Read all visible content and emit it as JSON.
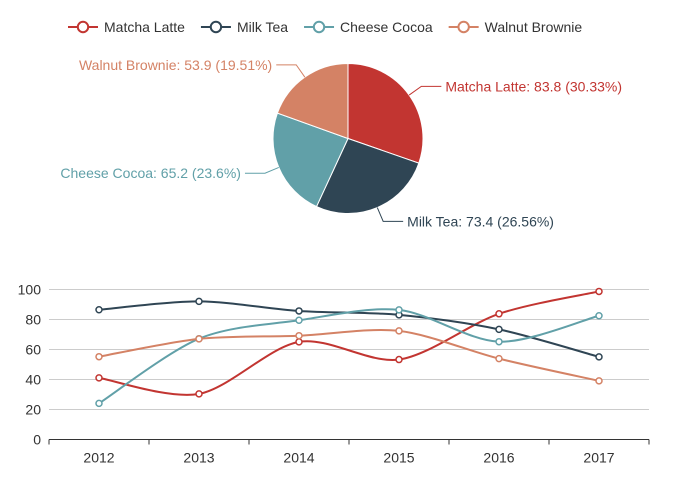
{
  "chart_data": [
    {
      "type": "pie",
      "slices": [
        {
          "name": "Matcha Latte",
          "value": 83.8,
          "percent_label": "30.33%",
          "color": "#c23531"
        },
        {
          "name": "Milk Tea",
          "value": 73.4,
          "percent_label": "26.56%",
          "color": "#2f4554"
        },
        {
          "name": "Cheese Cocoa",
          "value": 65.2,
          "percent_label": "23.6%",
          "color": "#61a0a8"
        },
        {
          "name": "Walnut Brownie",
          "value": 53.9,
          "percent_label": "19.51%",
          "color": "#d48265"
        }
      ],
      "legend": {
        "placement": "top-center",
        "items": [
          "Matcha Latte",
          "Milk Tea",
          "Cheese Cocoa",
          "Walnut Brownie"
        ]
      }
    },
    {
      "type": "line",
      "smooth": true,
      "categories": [
        "2012",
        "2013",
        "2014",
        "2015",
        "2016",
        "2017"
      ],
      "y_ticks": [
        0,
        20,
        40,
        60,
        80,
        100
      ],
      "ylim": [
        0,
        100
      ],
      "grid": true,
      "series": [
        {
          "name": "Matcha Latte",
          "color": "#c23531",
          "values": [
            41.1,
            30.4,
            65.1,
            53.3,
            83.8,
            98.7
          ]
        },
        {
          "name": "Milk Tea",
          "color": "#2f4554",
          "values": [
            86.5,
            92.1,
            85.7,
            83.1,
            73.4,
            55.1
          ]
        },
        {
          "name": "Cheese Cocoa",
          "color": "#61a0a8",
          "values": [
            24.1,
            67.2,
            79.5,
            86.4,
            65.2,
            82.5
          ]
        },
        {
          "name": "Walnut Brownie",
          "color": "#d48265",
          "values": [
            55.2,
            67.1,
            69.2,
            72.4,
            53.9,
            39.1
          ]
        }
      ]
    }
  ]
}
